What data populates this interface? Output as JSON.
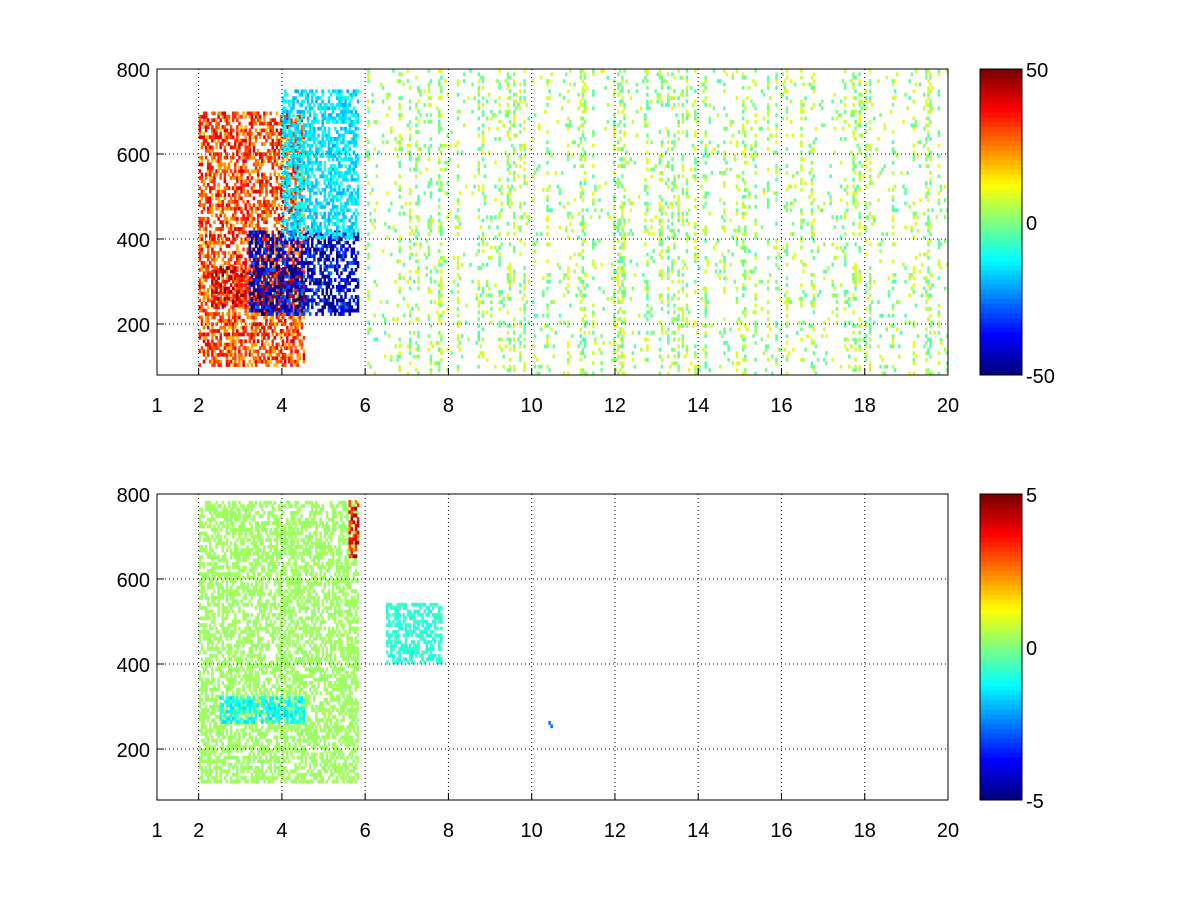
{
  "chart_data": [
    {
      "type": "heatmap",
      "title": "",
      "xlabel": "",
      "ylabel": "",
      "xlim": [
        1,
        20
      ],
      "ylim": [
        80,
        800
      ],
      "xticks": [
        1,
        2,
        4,
        6,
        8,
        10,
        12,
        14,
        16,
        18,
        20
      ],
      "yticks": [
        200,
        400,
        600,
        800
      ],
      "grid": true,
      "colormap": "jet",
      "colorbar": {
        "clim": [
          -50,
          50
        ],
        "ticks": [
          -50,
          0,
          50
        ],
        "placement": "right"
      },
      "features": [
        {
          "x": [
            2.0,
            4.5
          ],
          "y": [
            100,
            700
          ],
          "value": 30
        },
        {
          "x": [
            3.3,
            4.5
          ],
          "y": [
            230,
            330
          ],
          "value": 45
        },
        {
          "x": [
            2.3,
            3.3
          ],
          "y": [
            240,
            330
          ],
          "value": 40
        },
        {
          "x": [
            3.2,
            5.8
          ],
          "y": [
            220,
            420
          ],
          "value": -42
        },
        {
          "x": [
            4.0,
            5.8
          ],
          "y": [
            400,
            750
          ],
          "value": -15
        },
        {
          "x": [
            6.0,
            20.0
          ],
          "y": [
            80,
            800
          ],
          "value": 3,
          "note": "sparse"
        }
      ]
    },
    {
      "type": "heatmap",
      "title": "",
      "xlabel": "",
      "ylabel": "",
      "xlim": [
        1,
        20
      ],
      "ylim": [
        80,
        800
      ],
      "xticks": [
        1,
        2,
        4,
        6,
        8,
        10,
        12,
        14,
        16,
        18,
        20
      ],
      "yticks": [
        200,
        400,
        600,
        800
      ],
      "grid": true,
      "colormap": "jet",
      "colorbar": {
        "clim": [
          -5,
          5
        ],
        "ticks": [
          -5,
          0,
          5
        ],
        "placement": "right"
      },
      "features": [
        {
          "x": [
            2.0,
            5.8
          ],
          "y": [
            120,
            780
          ],
          "value": 0.3
        },
        {
          "x": [
            2.5,
            4.5
          ],
          "y": [
            260,
            320
          ],
          "value": -1.2
        },
        {
          "x": [
            5.6,
            5.8
          ],
          "y": [
            650,
            780
          ],
          "value": 3.5
        },
        {
          "x": [
            6.5,
            7.8
          ],
          "y": [
            400,
            540
          ],
          "value": -0.8
        },
        {
          "x": [
            10.4,
            10.5
          ],
          "y": [
            250,
            265
          ],
          "value": -2
        }
      ]
    }
  ]
}
